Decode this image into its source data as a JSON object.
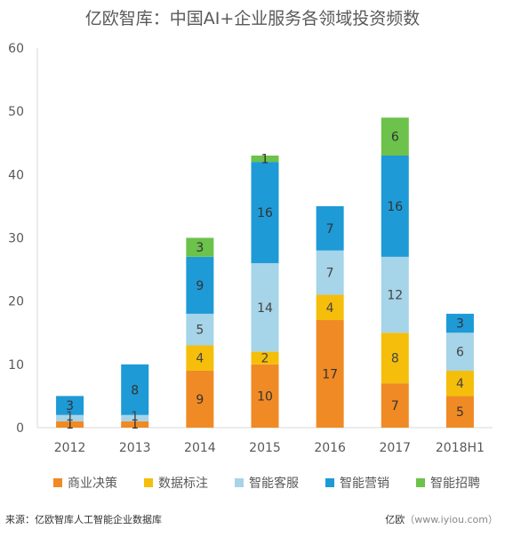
{
  "colors": {
    "axis": "#d9d9d9",
    "tick_text": "#595959",
    "label_dark": "#333333",
    "label_light": "#444444"
  },
  "chart_data": {
    "type": "bar",
    "stacked": true,
    "title": "亿欧智库：中国AI+企业服务各领域投资频数",
    "categories": [
      "2012",
      "2013",
      "2014",
      "2015",
      "2016",
      "2017",
      "2018H1"
    ],
    "ylim": [
      0,
      60
    ],
    "yticks": [
      0,
      10,
      20,
      30,
      40,
      50,
      60
    ],
    "grid": false,
    "legend_position": "bottom",
    "series": [
      {
        "name": "商业决策",
        "color": "#f08a24",
        "values": [
          1,
          1,
          9,
          10,
          17,
          7,
          5
        ]
      },
      {
        "name": "数据标注",
        "color": "#f5be0b",
        "values": [
          0,
          0,
          4,
          2,
          4,
          8,
          4
        ]
      },
      {
        "name": "智能客服",
        "color": "#a6d4e8",
        "values": [
          1,
          1,
          5,
          14,
          7,
          12,
          6
        ]
      },
      {
        "name": "智能营销",
        "color": "#1e9ad6",
        "values": [
          3,
          8,
          9,
          16,
          7,
          16,
          3
        ]
      },
      {
        "name": "智能招聘",
        "color": "#6cc24a",
        "values": [
          0,
          0,
          3,
          1,
          0,
          6,
          0
        ]
      }
    ]
  },
  "footer": {
    "source": "来源：亿欧智库人工智能企业数据库",
    "watermark_brand": "亿欧",
    "watermark_site": "（www.iyiou.com）"
  }
}
